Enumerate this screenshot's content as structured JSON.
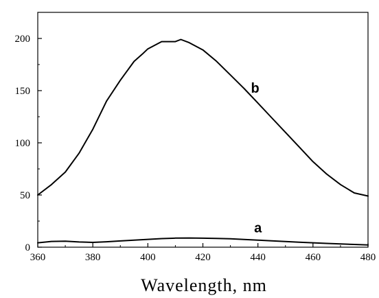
{
  "chart_data": {
    "type": "line",
    "title": "",
    "xlabel": "Wavelength, nm",
    "ylabel": "",
    "xlim": [
      360,
      480
    ],
    "ylim": [
      0,
      225
    ],
    "x_ticks": [
      360,
      380,
      400,
      420,
      440,
      460,
      480
    ],
    "y_ticks": [
      0,
      50,
      100,
      150,
      200
    ],
    "x_tick_labels": [
      "360",
      "380",
      "400",
      "420",
      "440",
      "460",
      "480"
    ],
    "y_tick_labels": [
      "0",
      "50",
      "100",
      "150",
      "200"
    ],
    "grid": false,
    "legend": "none",
    "line_color": "#000000",
    "series": [
      {
        "name": "a",
        "x": [
          360,
          365,
          370,
          375,
          380,
          385,
          390,
          395,
          400,
          405,
          410,
          415,
          420,
          425,
          430,
          435,
          440,
          445,
          450,
          455,
          460,
          465,
          470,
          475,
          480
        ],
        "y": [
          4.2,
          5.5,
          5.8,
          5.0,
          4.6,
          5.2,
          6.0,
          6.8,
          7.5,
          8.2,
          8.7,
          8.8,
          8.6,
          8.4,
          8.0,
          7.4,
          6.8,
          6.1,
          5.4,
          4.8,
          4.2,
          3.6,
          3.1,
          2.6,
          2.1
        ]
      },
      {
        "name": "b",
        "x": [
          360,
          365,
          370,
          375,
          380,
          385,
          390,
          395,
          398,
          400,
          405,
          408,
          410,
          412,
          415,
          420,
          425,
          430,
          435,
          440,
          445,
          450,
          455,
          460,
          465,
          470,
          475,
          480
        ],
        "y": [
          50,
          60,
          72,
          90,
          113,
          140,
          160,
          178,
          185,
          190,
          197,
          197,
          197,
          199,
          196,
          189,
          178,
          165,
          152,
          138,
          124,
          110,
          96,
          82,
          70,
          60,
          52,
          49
        ]
      }
    ],
    "annotations": [
      {
        "text": "b",
        "x": 439,
        "y": 148
      },
      {
        "text": "a",
        "x": 440,
        "y": 14
      }
    ]
  }
}
